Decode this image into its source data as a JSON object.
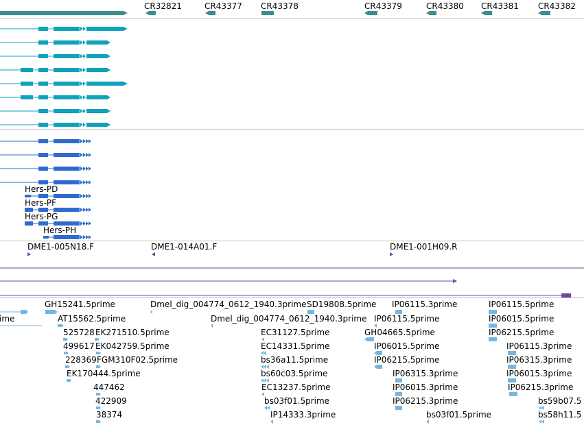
{
  "colors": {
    "ncrna": "#3b8f8f",
    "transcript": "#10a1bc",
    "hers": "#2d6bd0",
    "clone": "#6a4aa5",
    "est": "#78b6e2",
    "divider": "#bdbdbd"
  },
  "tracks": {
    "ncrna_genes": [
      "CR32821",
      "CR43377",
      "CR43378",
      "CR43379",
      "CR43380",
      "CR43381",
      "CR43382"
    ],
    "transcripts_cyan_count": 8,
    "hers_transcripts": [
      "Hers-PD",
      "Hers-PF",
      "Hers-PG",
      "Hers-PH"
    ],
    "clones": [
      "DME1-005N18.F",
      "DME1-014A01.F",
      "DME1-001H09.R"
    ],
    "est_labels": [
      "ime",
      "GH15241.5prime",
      "AT15562.5prime",
      "525728",
      "EK271510.5prime",
      "499617",
      "EK042759.5prime",
      "228369",
      "FGM310F02.5prime",
      "EK170444.5prime",
      "447462",
      "422909",
      "38374",
      "Dmel_dig_004774_0612_1940.3prime",
      "SD19808.5prime",
      "Dmel_dig_004774_0612_1940.3prime",
      "EC31127.5prime",
      "EC14331.5prime",
      "bs36a11.5prime",
      "bs60c03.5prime",
      "EC13237.5prime",
      "bs03f01.5prime",
      "IP14333.3prime",
      "IP06115.3prime",
      "IP06115.5prime",
      "GH04665.5prime",
      "IP06015.5prime",
      "IP06215.5prime",
      "IP06315.3prime",
      "IP06015.3prime",
      "IP06215.3prime",
      "bs03f01.5prime",
      "IP06115.5prime",
      "IP06015.5prime",
      "IP06215.5prime",
      "IP06115.3prime",
      "IP06315.3prime",
      "IP06015.3prime",
      "IP06215.3prime",
      "bs59b07.5",
      "bs58h11.5"
    ]
  }
}
